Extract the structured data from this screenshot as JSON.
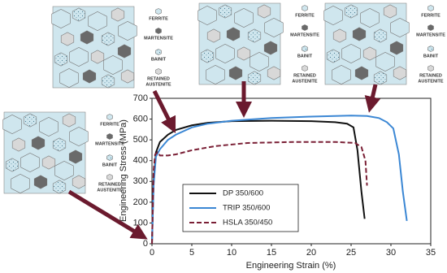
{
  "chart_data": {
    "type": "line",
    "x_label": "Engineering Strain (%)",
    "y_label": "Engineering Stress (MPa)",
    "xlim": [
      0,
      35
    ],
    "xticks": [
      0,
      5,
      10,
      15,
      20,
      25,
      30,
      35
    ],
    "ylim": [
      0,
      700
    ],
    "yticks": [
      0,
      100,
      200,
      300,
      400,
      500,
      600,
      700
    ],
    "legend": "lower left",
    "series": [
      {
        "name": "DP 350/600",
        "color": "#111111",
        "dash": "solid",
        "x": [
          0,
          0.2,
          0.5,
          1,
          2,
          3,
          5,
          7,
          10,
          15,
          20,
          23,
          24.5,
          25.3,
          25.8,
          26.3,
          26.7
        ],
        "values": [
          0,
          300,
          440,
          490,
          525,
          548,
          570,
          582,
          590,
          592,
          590,
          585,
          578,
          560,
          450,
          250,
          120
        ]
      },
      {
        "name": "TRIP 350/600",
        "color": "#3b87d4",
        "dash": "solid",
        "x": [
          0,
          0.2,
          0.5,
          1,
          2,
          3,
          5,
          7,
          10,
          15,
          20,
          25,
          27,
          28.5,
          29.5,
          30.3,
          31,
          31.5,
          32
        ],
        "values": [
          0,
          280,
          420,
          455,
          500,
          525,
          560,
          578,
          592,
          605,
          612,
          617,
          615,
          605,
          585,
          555,
          430,
          250,
          110
        ]
      },
      {
        "name": "HSLA 350/450",
        "color": "#7a1f35",
        "dash": "dashed",
        "x": [
          0,
          0.2,
          0.4,
          0.7,
          1,
          2,
          3,
          5,
          8,
          12,
          18,
          23,
          25.5,
          26.3,
          26.8,
          27
        ],
        "values": [
          0,
          350,
          430,
          440,
          425,
          425,
          430,
          450,
          470,
          485,
          490,
          490,
          485,
          465,
          400,
          280
        ]
      }
    ]
  },
  "microstructure_key": [
    [
      "FERRITE"
    ],
    [
      "MARTENSITE"
    ],
    [
      "BAINIT"
    ],
    [
      "RETAINED",
      "AUSTENITE"
    ]
  ]
}
